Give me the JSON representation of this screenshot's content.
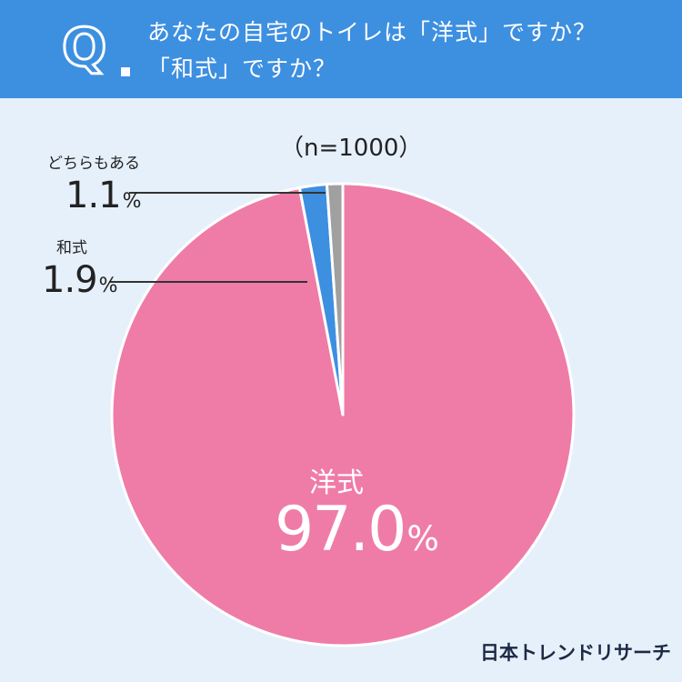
{
  "header": {
    "q_letter": "Q",
    "question_line1": "あなたの自宅のトイレは「洋式」ですか？",
    "question_line2": "「和式」ですか？"
  },
  "sample_size": "（n=1000）",
  "brand": "日本トレンドリサーチ",
  "colors": {
    "header_bg": "#3d8fe0",
    "page_bg": "#e6f0fb",
    "western": "#ef7ca6",
    "japanese": "#3d8fe0",
    "both": "#a0a0a0"
  },
  "labels": {
    "western": "洋式",
    "western_value": "97.0",
    "japanese": "和式",
    "japanese_value": "1.9",
    "both": "どちらもある",
    "both_value": "1.1",
    "percent_sign": "%"
  },
  "chart_data": {
    "type": "pie",
    "title": "あなたの自宅のトイレは「洋式」ですか？「和式」ですか？",
    "categories": [
      "洋式",
      "和式",
      "どちらもある"
    ],
    "values": [
      97.0,
      1.9,
      1.1
    ],
    "unit": "%",
    "start": "12 o'clock",
    "direction": "counterclockwise",
    "colors": [
      "#ef7ca6",
      "#3d8fe0",
      "#a0a0a0"
    ]
  }
}
